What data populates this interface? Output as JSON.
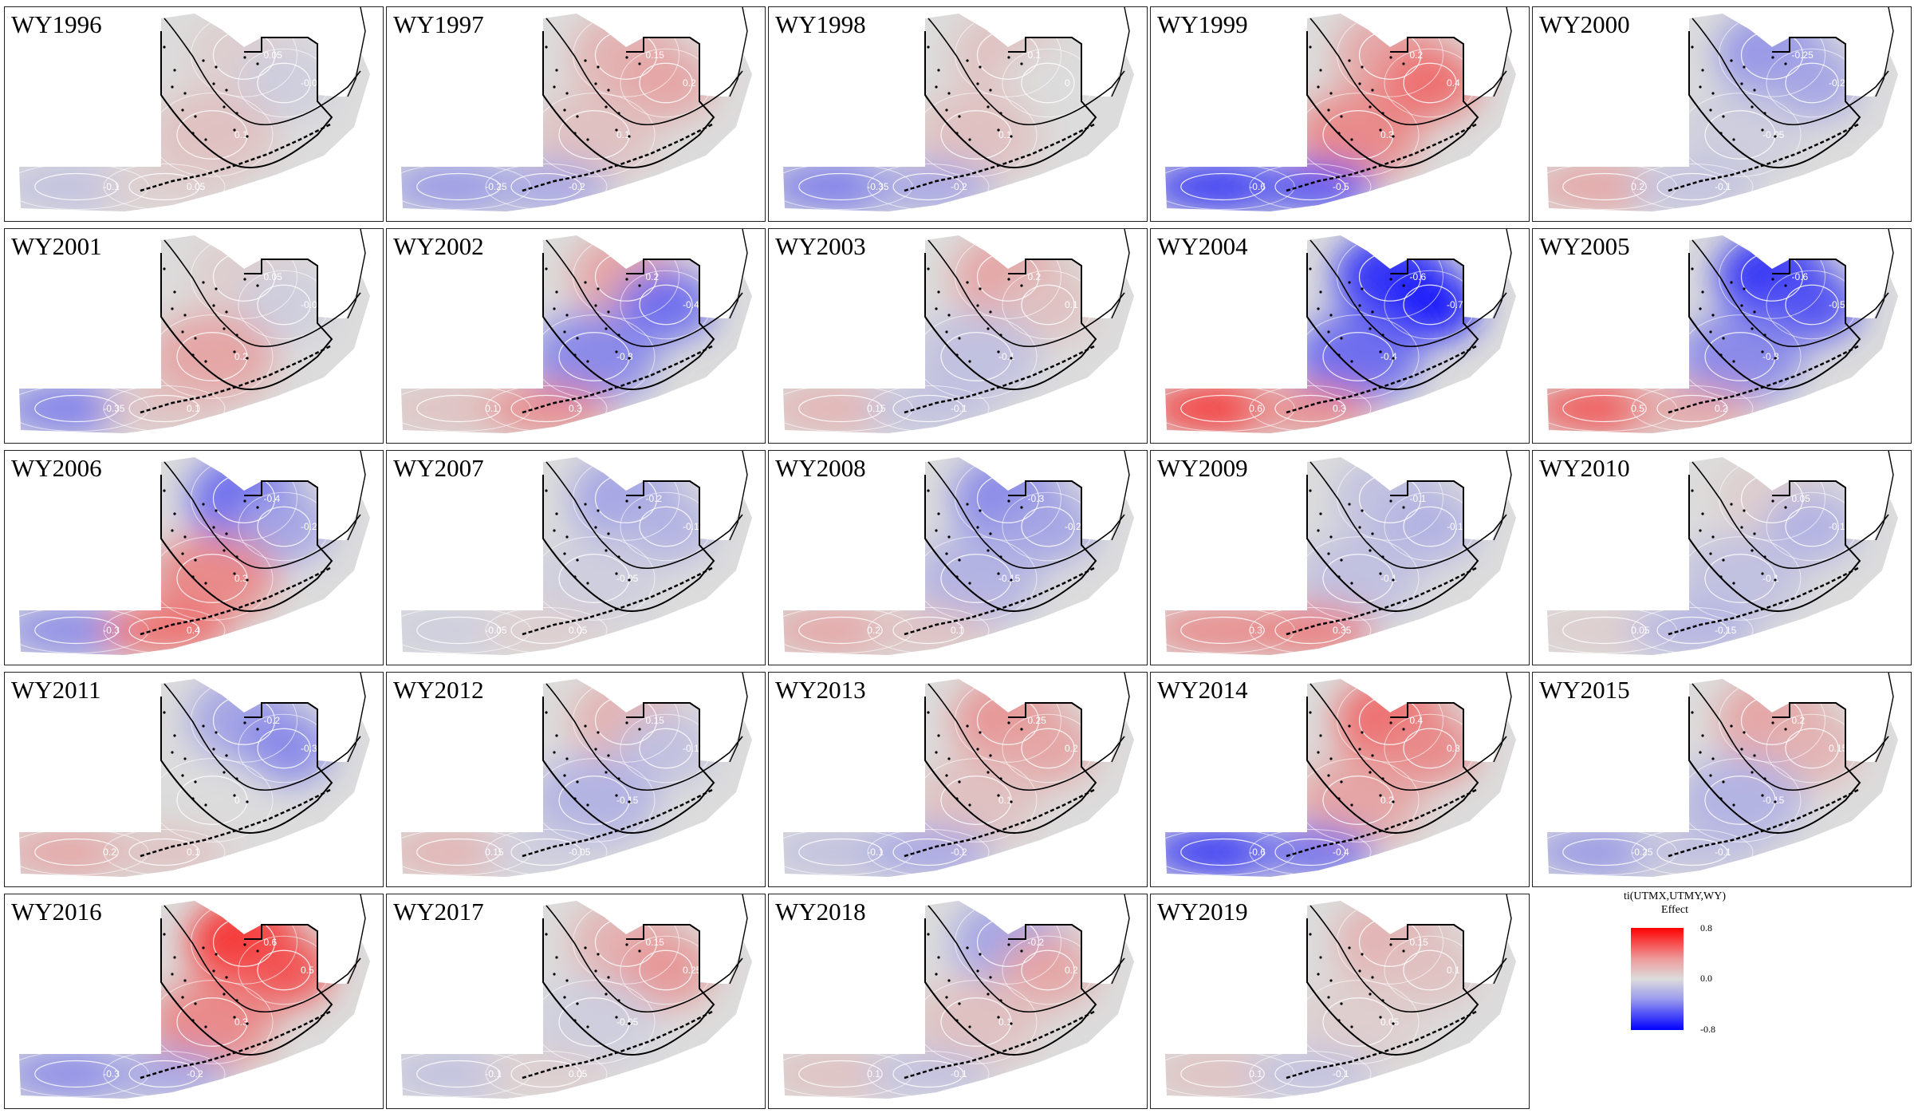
{
  "colors": {
    "positive": "#ff0000",
    "neutral": "#dcdcdc",
    "negative": "#0000ff"
  },
  "panels": [
    {
      "title": "WY1996",
      "levels": [
        0.05,
        -0.05,
        0.1,
        -0.1,
        0.05
      ]
    },
    {
      "title": "WY1997",
      "levels": [
        0.15,
        0.2,
        0.1,
        -0.25,
        -0.2
      ]
    },
    {
      "title": "WY1998",
      "levels": [
        0.1,
        0,
        0.1,
        -0.35,
        -0.2
      ]
    },
    {
      "title": "WY1999",
      "levels": [
        0.2,
        0.4,
        0.3,
        -0.6,
        -0.5
      ]
    },
    {
      "title": "WY2000",
      "levels": [
        -0.25,
        -0.2,
        -0.05,
        0.2,
        -0.1
      ]
    },
    {
      "title": "WY2001",
      "levels": [
        0.05,
        -0.05,
        0.2,
        -0.35,
        0.1
      ]
    },
    {
      "title": "WY2002",
      "levels": [
        0.2,
        -0.4,
        -0.3,
        0.1,
        0.3
      ]
    },
    {
      "title": "WY2003",
      "levels": [
        0.2,
        0.1,
        -0.1,
        0.15,
        -0.1
      ]
    },
    {
      "title": "WY2004",
      "levels": [
        -0.6,
        -0.7,
        -0.4,
        0.6,
        0.3
      ]
    },
    {
      "title": "WY2005",
      "levels": [
        -0.6,
        -0.5,
        -0.3,
        0.5,
        0.2
      ]
    },
    {
      "title": "WY2006",
      "levels": [
        -0.4,
        -0.2,
        0.3,
        -0.3,
        0.4
      ]
    },
    {
      "title": "WY2007",
      "levels": [
        -0.2,
        -0.15,
        -0.05,
        -0.05,
        0.05
      ]
    },
    {
      "title": "WY2008",
      "levels": [
        -0.3,
        -0.2,
        -0.15,
        0.2,
        0.1
      ]
    },
    {
      "title": "WY2009",
      "levels": [
        -0.1,
        -0.15,
        -0.1,
        0.3,
        0.35
      ]
    },
    {
      "title": "WY2010",
      "levels": [
        0.05,
        -0.15,
        -0.1,
        0.05,
        -0.15
      ]
    },
    {
      "title": "WY2011",
      "levels": [
        -0.2,
        -0.3,
        0,
        0.2,
        0.1
      ]
    },
    {
      "title": "WY2012",
      "levels": [
        0.15,
        -0.1,
        -0.15,
        0.15,
        -0.05
      ]
    },
    {
      "title": "WY2013",
      "levels": [
        0.25,
        0.2,
        0.1,
        -0.1,
        -0.2
      ]
    },
    {
      "title": "WY2014",
      "levels": [
        0.4,
        0.3,
        0.2,
        -0.6,
        -0.4
      ]
    },
    {
      "title": "WY2015",
      "levels": [
        0.2,
        0.15,
        -0.15,
        -0.25,
        -0.1
      ]
    },
    {
      "title": "WY2016",
      "levels": [
        0.6,
        0.5,
        0.3,
        -0.3,
        -0.2
      ]
    },
    {
      "title": "WY2017",
      "levels": [
        0.15,
        0.25,
        -0.05,
        -0.1,
        0.05
      ]
    },
    {
      "title": "WY2018",
      "levels": [
        -0.2,
        0.2,
        0.1,
        0.1,
        -0.1
      ]
    },
    {
      "title": "WY2019",
      "levels": [
        0.15,
        0.1,
        0.05,
        0.1,
        -0.1
      ]
    }
  ],
  "legend": {
    "title": "ti(UTMX,UTMY,WY)\nEffect",
    "max_label": "0.8",
    "mid_label": "0.0",
    "min_label": "-0.8"
  }
}
